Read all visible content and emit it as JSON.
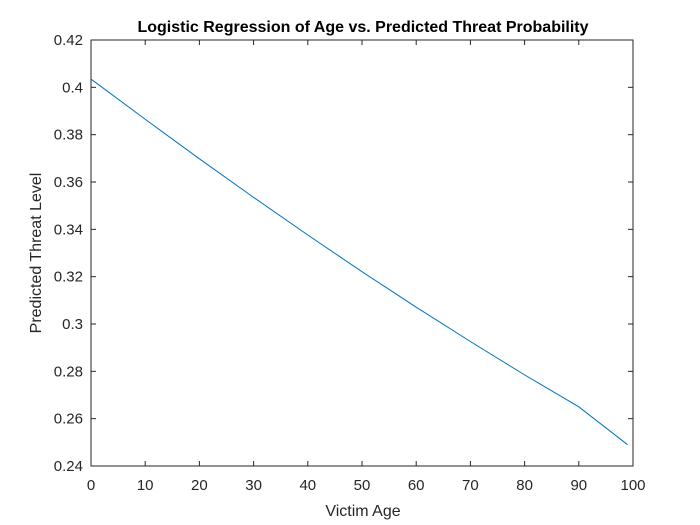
{
  "chart_data": {
    "type": "line",
    "title": "Logistic Regression of Age vs. Predicted Threat Probability",
    "xlabel": "Victim Age",
    "ylabel": "Predicted Threat Level",
    "xlim": [
      0,
      100
    ],
    "ylim": [
      0.24,
      0.42
    ],
    "xticks": [
      0,
      10,
      20,
      30,
      40,
      50,
      60,
      70,
      80,
      90,
      100
    ],
    "yticks": [
      0.24,
      0.26,
      0.28,
      0.3,
      0.32,
      0.34,
      0.36,
      0.38,
      0.4,
      0.42
    ],
    "xtick_labels": [
      "0",
      "10",
      "20",
      "30",
      "40",
      "50",
      "60",
      "70",
      "80",
      "90",
      "100"
    ],
    "ytick_labels": [
      "0.24",
      "0.26",
      "0.28",
      "0.3",
      "0.32",
      "0.34",
      "0.36",
      "0.38",
      "0.4",
      "0.42"
    ],
    "grid": false,
    "series": [
      {
        "color": "#0072BD",
        "x": [
          0,
          10,
          20,
          30,
          40,
          50,
          60,
          70,
          80,
          90,
          99
        ],
        "y": [
          0.4035,
          0.3865,
          0.3698,
          0.3535,
          0.3376,
          0.3221,
          0.3071,
          0.2926,
          0.2785,
          0.265,
          0.249
        ]
      }
    ]
  }
}
